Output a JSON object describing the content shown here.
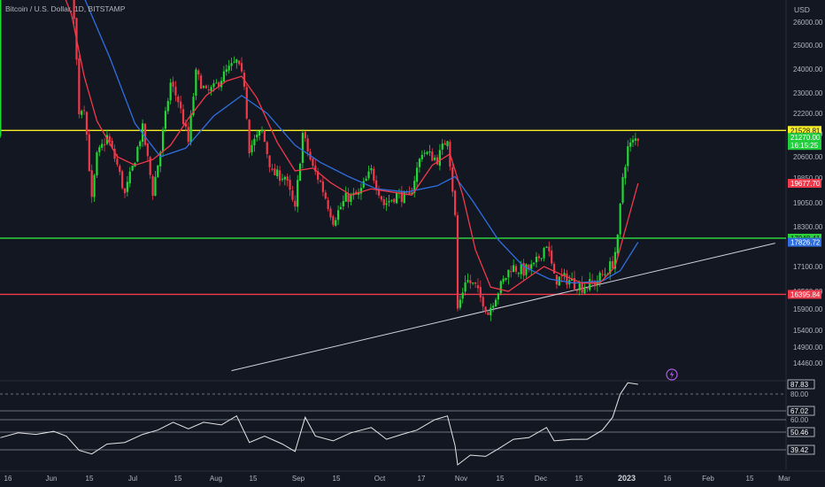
{
  "symbol_title": "Bitcoin / U.S. Dollar, 1D, BITSTAMP",
  "currency": "USD",
  "colors": {
    "background": "#131722",
    "up": "#22d934",
    "down": "#f0394a",
    "ma_fast": "#f0394a",
    "ma_slow": "#2f6fe0",
    "resistance": "#f7ee27",
    "mid_level": "#2cd23a",
    "support": "#f0394a",
    "trendline": "#cfd2dc",
    "axis_text": "#b2b5be",
    "rsi_line": "#e6e6e6",
    "rsi_guides": "#8a8f9c",
    "price_current": "#1fcf3b"
  },
  "chart_data": [
    {
      "type": "candlestick",
      "title": "Bitcoin / U.S. Dollar, 1D, BITSTAMP",
      "y_axis": {
        "unit": "USD",
        "ticks": [
          26000,
          25000,
          24000,
          23000,
          22200,
          21400,
          20600,
          19850,
          19050,
          18300,
          17100,
          16500,
          15900,
          15400,
          14900,
          14460
        ]
      },
      "x_axis": {
        "tick_labels": [
          "16",
          "Jun",
          "15",
          "Jul",
          "15",
          "Aug",
          "15",
          "Sep",
          "15",
          "Oct",
          "17",
          "Nov",
          "15",
          "Dec",
          "15",
          "2023",
          "16",
          "Feb",
          "15",
          "Mar"
        ]
      },
      "horizontal_lines": [
        {
          "label": "21528.81",
          "value": 21528.81,
          "color": "#f7ee27"
        },
        {
          "label": "17948.41",
          "value": 17948.41,
          "color": "#2cd23a"
        },
        {
          "label": "16395.84",
          "value": 16395.84,
          "color": "#f0394a"
        }
      ],
      "trendline": {
        "from": [
          "2022-08-12",
          14250
        ],
        "to": [
          "2023-03-14",
          17800
        ]
      },
      "price_labels": [
        {
          "label": "21528.81",
          "value": 21528.81,
          "bg": "#f7ee27",
          "fg": "#131722"
        },
        {
          "label": "21270.00",
          "value": 21270.0,
          "bg": "#1fcf3b",
          "fg": "#ffffff"
        },
        {
          "label": "16:15:25",
          "value": 21270.0,
          "bg": "#1fcf3b",
          "fg": "#ffffff",
          "below": true
        },
        {
          "label": "19677.70",
          "value": 19677.7,
          "bg": "#f0394a",
          "fg": "#ffffff"
        },
        {
          "label": "17948.41",
          "value": 17948.41,
          "bg": "#2cd23a",
          "fg": "#131722"
        },
        {
          "label": "17826.72",
          "value": 17826.72,
          "bg": "#2f6fe0",
          "fg": "#ffffff"
        },
        {
          "label": "16395.84",
          "value": 16395.84,
          "bg": "#f0394a",
          "fg": "#ffffff"
        }
      ],
      "series_points": [
        {
          "date": "2022-05-13",
          "close": 29200
        },
        {
          "date": "2022-05-20",
          "close": 29800
        },
        {
          "date": "2022-05-27",
          "close": 29200
        },
        {
          "date": "2022-06-03",
          "close": 29900
        },
        {
          "date": "2022-06-10",
          "close": 28400
        },
        {
          "date": "2022-06-13",
          "close": 22300
        },
        {
          "date": "2022-06-15",
          "close": 22500
        },
        {
          "date": "2022-06-18",
          "close": 19100
        },
        {
          "date": "2022-06-20",
          "close": 20600
        },
        {
          "date": "2022-06-24",
          "close": 21300
        },
        {
          "date": "2022-06-28",
          "close": 20300
        },
        {
          "date": "2022-07-01",
          "close": 19300
        },
        {
          "date": "2022-07-04",
          "close": 20200
        },
        {
          "date": "2022-07-08",
          "close": 21600
        },
        {
          "date": "2022-07-12",
          "close": 19400
        },
        {
          "date": "2022-07-15",
          "close": 20800
        },
        {
          "date": "2022-07-19",
          "close": 23400
        },
        {
          "date": "2022-07-22",
          "close": 22700
        },
        {
          "date": "2022-07-26",
          "close": 21100
        },
        {
          "date": "2022-07-29",
          "close": 23800
        },
        {
          "date": "2022-08-02",
          "close": 23000
        },
        {
          "date": "2022-08-05",
          "close": 23200
        },
        {
          "date": "2022-08-10",
          "close": 23900
        },
        {
          "date": "2022-08-14",
          "close": 24300
        },
        {
          "date": "2022-08-17",
          "close": 23400
        },
        {
          "date": "2022-08-19",
          "close": 20900
        },
        {
          "date": "2022-08-24",
          "close": 21500
        },
        {
          "date": "2022-08-28",
          "close": 20000
        },
        {
          "date": "2022-09-02",
          "close": 19900
        },
        {
          "date": "2022-09-06",
          "close": 18800
        },
        {
          "date": "2022-09-09",
          "close": 21400
        },
        {
          "date": "2022-09-13",
          "close": 20200
        },
        {
          "date": "2022-09-16",
          "close": 19700
        },
        {
          "date": "2022-09-21",
          "close": 18500
        },
        {
          "date": "2022-09-26",
          "close": 19200
        },
        {
          "date": "2022-10-01",
          "close": 19300
        },
        {
          "date": "2022-10-06",
          "close": 20100
        },
        {
          "date": "2022-10-11",
          "close": 19000
        },
        {
          "date": "2022-10-16",
          "close": 19300
        },
        {
          "date": "2022-10-21",
          "close": 19200
        },
        {
          "date": "2022-10-26",
          "close": 20800
        },
        {
          "date": "2022-11-01",
          "close": 20500
        },
        {
          "date": "2022-11-05",
          "close": 21300
        },
        {
          "date": "2022-11-08",
          "close": 18600
        },
        {
          "date": "2022-11-09",
          "close": 15900
        },
        {
          "date": "2022-11-12",
          "close": 16800
        },
        {
          "date": "2022-11-16",
          "close": 16600
        },
        {
          "date": "2022-11-21",
          "close": 15800
        },
        {
          "date": "2022-11-25",
          "close": 16500
        },
        {
          "date": "2022-11-30",
          "close": 17100
        },
        {
          "date": "2022-12-05",
          "close": 17000
        },
        {
          "date": "2022-12-09",
          "close": 17100
        },
        {
          "date": "2022-12-14",
          "close": 17800
        },
        {
          "date": "2022-12-17",
          "close": 16800
        },
        {
          "date": "2022-12-22",
          "close": 16800
        },
        {
          "date": "2022-12-28",
          "close": 16600
        },
        {
          "date": "2023-01-02",
          "close": 16700
        },
        {
          "date": "2023-01-06",
          "close": 16950
        },
        {
          "date": "2023-01-09",
          "close": 17200
        },
        {
          "date": "2023-01-11",
          "close": 17900
        },
        {
          "date": "2023-01-13",
          "close": 19900
        },
        {
          "date": "2023-01-15",
          "close": 20900
        },
        {
          "date": "2023-01-18",
          "close": 21200
        },
        {
          "date": "2023-01-19",
          "close": 21270
        }
      ],
      "ma_fast_points": [
        {
          "date": "2022-05-30",
          "value": 30200
        },
        {
          "date": "2022-06-10",
          "value": 26400
        },
        {
          "date": "2022-06-15",
          "value": 23700
        },
        {
          "date": "2022-06-20",
          "value": 21900
        },
        {
          "date": "2022-06-28",
          "value": 20600
        },
        {
          "date": "2022-07-05",
          "value": 20300
        },
        {
          "date": "2022-07-12",
          "value": 20500
        },
        {
          "date": "2022-07-19",
          "value": 21000
        },
        {
          "date": "2022-07-26",
          "value": 22000
        },
        {
          "date": "2022-08-02",
          "value": 22900
        },
        {
          "date": "2022-08-10",
          "value": 23500
        },
        {
          "date": "2022-08-16",
          "value": 23700
        },
        {
          "date": "2022-08-22",
          "value": 22800
        },
        {
          "date": "2022-08-30",
          "value": 21100
        },
        {
          "date": "2022-09-06",
          "value": 20100
        },
        {
          "date": "2022-09-13",
          "value": 20200
        },
        {
          "date": "2022-09-20",
          "value": 19700
        },
        {
          "date": "2022-09-28",
          "value": 19300
        },
        {
          "date": "2022-10-06",
          "value": 19500
        },
        {
          "date": "2022-10-14",
          "value": 19400
        },
        {
          "date": "2022-10-22",
          "value": 19300
        },
        {
          "date": "2022-10-30",
          "value": 20300
        },
        {
          "date": "2022-11-06",
          "value": 20700
        },
        {
          "date": "2022-11-11",
          "value": 19300
        },
        {
          "date": "2022-11-16",
          "value": 17600
        },
        {
          "date": "2022-11-22",
          "value": 16600
        },
        {
          "date": "2022-11-29",
          "value": 16500
        },
        {
          "date": "2022-12-06",
          "value": 16800
        },
        {
          "date": "2022-12-13",
          "value": 17100
        },
        {
          "date": "2022-12-20",
          "value": 16900
        },
        {
          "date": "2022-12-28",
          "value": 16700
        },
        {
          "date": "2023-01-04",
          "value": 16700
        },
        {
          "date": "2023-01-10",
          "value": 17100
        },
        {
          "date": "2023-01-15",
          "value": 18500
        },
        {
          "date": "2023-01-19",
          "value": 19677.7
        }
      ],
      "ma_slow_points": [
        {
          "date": "2022-06-01",
          "value": 30000
        },
        {
          "date": "2022-06-15",
          "value": 27300
        },
        {
          "date": "2022-06-25",
          "value": 24500
        },
        {
          "date": "2022-07-05",
          "value": 21800
        },
        {
          "date": "2022-07-15",
          "value": 20600
        },
        {
          "date": "2022-07-25",
          "value": 20900
        },
        {
          "date": "2022-08-05",
          "value": 22100
        },
        {
          "date": "2022-08-16",
          "value": 22900
        },
        {
          "date": "2022-08-26",
          "value": 22200
        },
        {
          "date": "2022-09-06",
          "value": 21000
        },
        {
          "date": "2022-09-16",
          "value": 20400
        },
        {
          "date": "2022-09-27",
          "value": 19900
        },
        {
          "date": "2022-10-08",
          "value": 19500
        },
        {
          "date": "2022-10-20",
          "value": 19400
        },
        {
          "date": "2022-11-01",
          "value": 19600
        },
        {
          "date": "2022-11-08",
          "value": 19900
        },
        {
          "date": "2022-11-15",
          "value": 19100
        },
        {
          "date": "2022-11-25",
          "value": 17900
        },
        {
          "date": "2022-12-05",
          "value": 17100
        },
        {
          "date": "2022-12-15",
          "value": 16800
        },
        {
          "date": "2022-12-25",
          "value": 16700
        },
        {
          "date": "2023-01-05",
          "value": 16750
        },
        {
          "date": "2023-01-12",
          "value": 17000
        },
        {
          "date": "2023-01-19",
          "value": 17826.72
        }
      ]
    },
    {
      "type": "line",
      "y_axis": {
        "range": [
          30,
          90
        ]
      },
      "guide_levels": [
        {
          "label": "80.00",
          "value": 80,
          "dashed": true
        },
        {
          "label": "67.02",
          "value": 67.02
        },
        {
          "label": "60.00",
          "value": 60
        },
        {
          "label": "50.46",
          "value": 50.46
        },
        {
          "label": "39.42",
          "value": 39.42
        }
      ],
      "value_labels": [
        {
          "label": "87.83",
          "value": 87.83,
          "boxed": true
        },
        {
          "label": "80.00",
          "value": 80
        },
        {
          "label": "67.02",
          "value": 67.02,
          "boxed": true
        },
        {
          "label": "60.00",
          "value": 60
        },
        {
          "label": "50.46",
          "value": 50.46,
          "boxed": true
        },
        {
          "label": "39.42",
          "value": 39.42,
          "boxed": true
        }
      ],
      "points": [
        {
          "date": "2022-05-13",
          "value": 47
        },
        {
          "date": "2022-05-20",
          "value": 50
        },
        {
          "date": "2022-05-27",
          "value": 49
        },
        {
          "date": "2022-06-03",
          "value": 51
        },
        {
          "date": "2022-06-08",
          "value": 48
        },
        {
          "date": "2022-06-13",
          "value": 39
        },
        {
          "date": "2022-06-18",
          "value": 36
        },
        {
          "date": "2022-06-24",
          "value": 43
        },
        {
          "date": "2022-07-01",
          "value": 44
        },
        {
          "date": "2022-07-08",
          "value": 49
        },
        {
          "date": "2022-07-14",
          "value": 52
        },
        {
          "date": "2022-07-20",
          "value": 58
        },
        {
          "date": "2022-07-26",
          "value": 53
        },
        {
          "date": "2022-08-01",
          "value": 58
        },
        {
          "date": "2022-08-08",
          "value": 56
        },
        {
          "date": "2022-08-14",
          "value": 63
        },
        {
          "date": "2022-08-19",
          "value": 44
        },
        {
          "date": "2022-08-25",
          "value": 48
        },
        {
          "date": "2022-09-01",
          "value": 43
        },
        {
          "date": "2022-09-06",
          "value": 38
        },
        {
          "date": "2022-09-10",
          "value": 62
        },
        {
          "date": "2022-09-14",
          "value": 48
        },
        {
          "date": "2022-09-21",
          "value": 45
        },
        {
          "date": "2022-09-28",
          "value": 50
        },
        {
          "date": "2022-10-06",
          "value": 54
        },
        {
          "date": "2022-10-12",
          "value": 46
        },
        {
          "date": "2022-10-18",
          "value": 49
        },
        {
          "date": "2022-10-24",
          "value": 52
        },
        {
          "date": "2022-10-31",
          "value": 60
        },
        {
          "date": "2022-11-05",
          "value": 63
        },
        {
          "date": "2022-11-08",
          "value": 42
        },
        {
          "date": "2022-11-09",
          "value": 27
        },
        {
          "date": "2022-11-14",
          "value": 35
        },
        {
          "date": "2022-11-20",
          "value": 34
        },
        {
          "date": "2022-11-25",
          "value": 40
        },
        {
          "date": "2022-12-01",
          "value": 46
        },
        {
          "date": "2022-12-07",
          "value": 47
        },
        {
          "date": "2022-12-14",
          "value": 54
        },
        {
          "date": "2022-12-17",
          "value": 45
        },
        {
          "date": "2022-12-24",
          "value": 46
        },
        {
          "date": "2022-12-30",
          "value": 46
        },
        {
          "date": "2023-01-05",
          "value": 52
        },
        {
          "date": "2023-01-09",
          "value": 62
        },
        {
          "date": "2023-01-12",
          "value": 80
        },
        {
          "date": "2023-01-15",
          "value": 89
        },
        {
          "date": "2023-01-19",
          "value": 87.83
        }
      ]
    }
  ]
}
